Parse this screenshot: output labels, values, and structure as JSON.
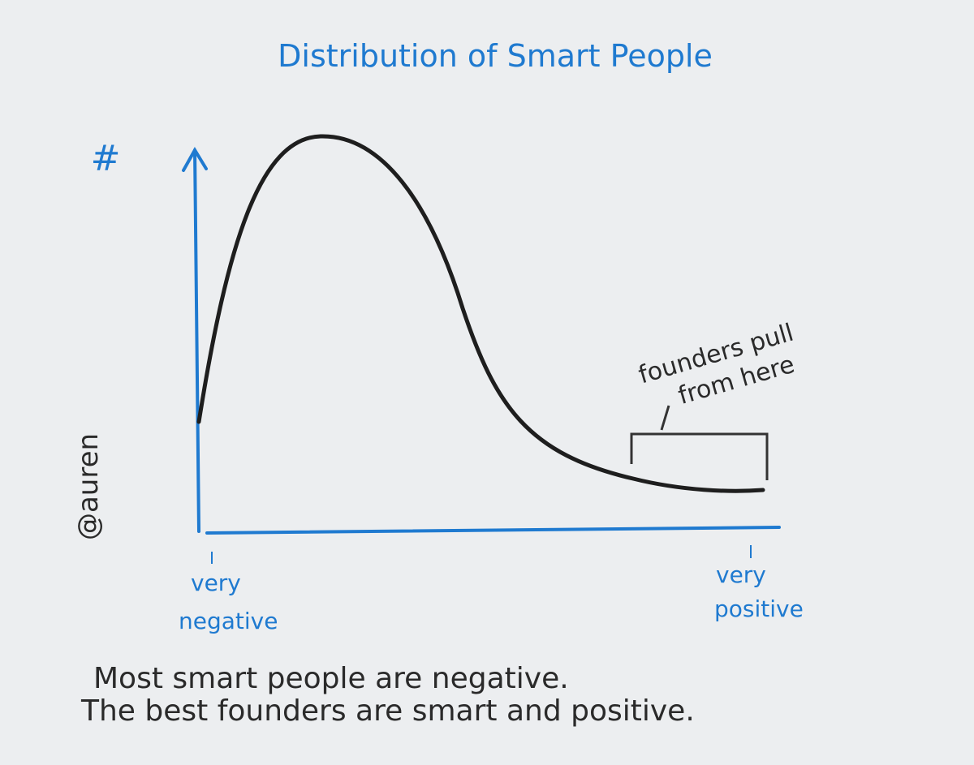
{
  "title": "Distribution of Smart People",
  "y_axis_label": "#",
  "x_axis_labels": {
    "left": [
      "very",
      "negative"
    ],
    "right": [
      "very",
      "positive"
    ]
  },
  "annotation": [
    "founders pull",
    "from here"
  ],
  "signature": "@auren",
  "caption": [
    "Most smart people are negative.",
    "The best founders are smart and positive."
  ]
}
